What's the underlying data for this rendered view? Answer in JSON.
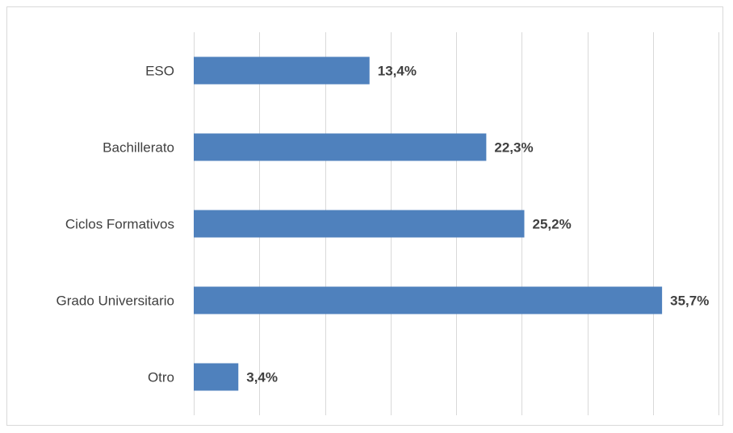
{
  "chart_data": {
    "type": "bar",
    "orientation": "horizontal",
    "categories": [
      "ESO",
      "Bachillerato",
      "Ciclos Formativos",
      "Grado Universitario",
      "Otro"
    ],
    "values": [
      13.4,
      22.3,
      25.2,
      35.7,
      3.4
    ],
    "value_labels": [
      "13,4%",
      "22,3%",
      "25,2%",
      "35,7%",
      "3,4%"
    ],
    "unit": "%",
    "xlim": [
      0,
      40
    ],
    "grid": true,
    "legend": "none",
    "title": "",
    "xlabel": "",
    "ylabel": "",
    "colors": {
      "bar": "#4f81bd",
      "grid": "#d9d9d9",
      "text": "#404040"
    }
  }
}
